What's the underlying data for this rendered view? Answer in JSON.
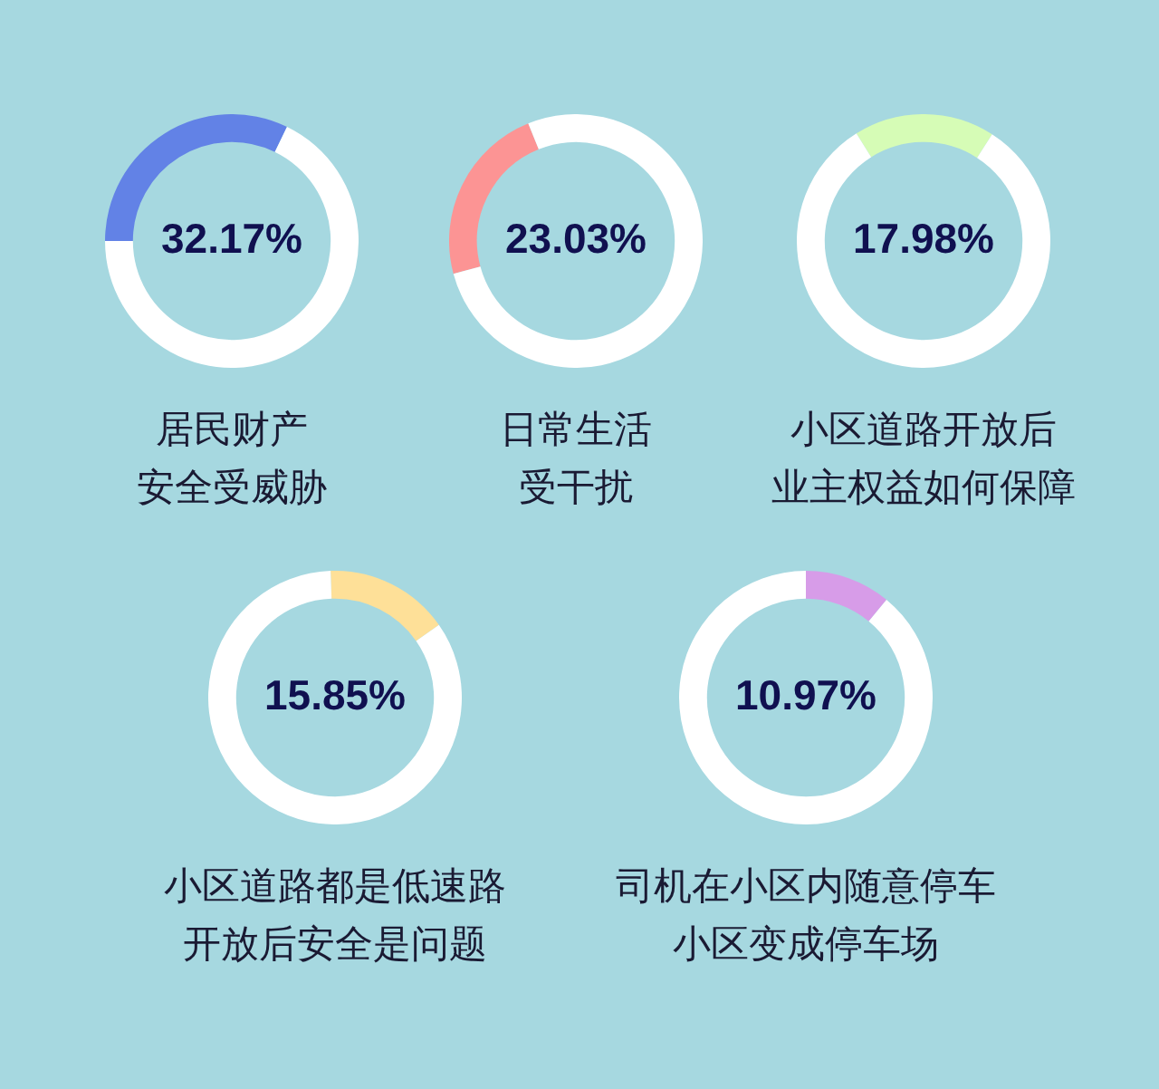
{
  "chart_data": [
    {
      "type": "donut",
      "title": "居民财产",
      "subtitle": "安全受威胁",
      "categories": [
        null,
        null
      ],
      "values": [
        32.17,
        67.83
      ],
      "colors": [
        "#6282e6",
        "#ffffff"
      ],
      "annotations": [
        "32.17%"
      ]
    },
    {
      "type": "donut",
      "title": "日常生活",
      "subtitle": "受干扰",
      "categories": [
        null,
        null
      ],
      "values": [
        23.03,
        76.97
      ],
      "colors": [
        "#fc9494",
        "#ffffff"
      ],
      "annotations": [
        "23.03%"
      ]
    },
    {
      "type": "donut",
      "title": "小区道路开放后",
      "subtitle": "业主权益如何保障",
      "categories": [
        null,
        null
      ],
      "values": [
        17.98,
        82.02
      ],
      "colors": [
        "#d6fcb6",
        "#ffffff"
      ],
      "annotations": [
        "17.98%"
      ]
    },
    {
      "type": "donut",
      "title": "小区道路都是低速路",
      "subtitle": "开放后安全是问题",
      "categories": [
        null,
        null
      ],
      "values": [
        15.85,
        84.15
      ],
      "colors": [
        "#fee098",
        "#ffffff"
      ],
      "annotations": [
        "15.85%"
      ]
    },
    {
      "type": "donut",
      "title": "司机在小区内随意停车",
      "subtitle": "小区变成停车场",
      "categories": [
        null,
        null
      ],
      "values": [
        10.97,
        89.03
      ],
      "colors": [
        "#d79ce8",
        "#ffffff"
      ],
      "annotations": [
        "10.97%"
      ]
    }
  ]
}
